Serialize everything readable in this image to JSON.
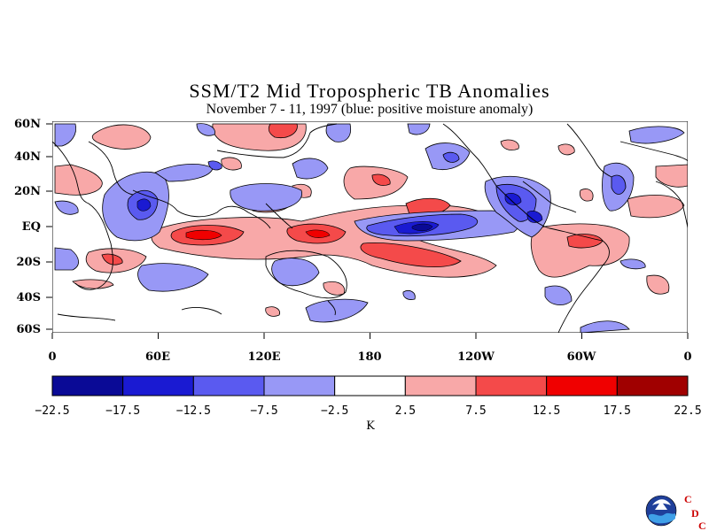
{
  "title": "SSM/T2 Mid Tropospheric TB Anomalies",
  "subtitle": "November 7 - 11, 1997 (blue: positive moisture anomaly)",
  "lat_labels": [
    "60N",
    "40N",
    "20N",
    "EQ",
    "20S",
    "40S",
    "60S"
  ],
  "lon_labels": [
    "0",
    "60E",
    "120E",
    "180",
    "120W",
    "60W",
    "0"
  ],
  "colorbar": {
    "labels": [
      "-22.5",
      "-17.5",
      "-12.5",
      "-7.5",
      "-2.5",
      "2.5",
      "7.5",
      "12.5",
      "17.5",
      "22.5"
    ],
    "colors": [
      "#0a0a96",
      "#1a1ad2",
      "#5a5af0",
      "#9898f6",
      "#ffffff",
      "#f8a8a8",
      "#f44a4a",
      "#f00000",
      "#a00000"
    ],
    "units": "K"
  },
  "logo": {
    "name": "noaa-logo",
    "letters": [
      "C",
      "D",
      "C"
    ]
  },
  "chart_data": {
    "type": "heatmap",
    "title": "SSM/T2 Mid Tropospheric TB Anomalies",
    "subtitle": "November 7 - 11, 1997 (blue: positive moisture anomaly)",
    "x_range": [
      "0",
      "360"
    ],
    "y_range": [
      "60S",
      "60N"
    ],
    "levels": [
      -22.5,
      -17.5,
      -12.5,
      -7.5,
      -2.5,
      2.5,
      7.5,
      12.5,
      17.5,
      22.5
    ],
    "units": "K"
  }
}
